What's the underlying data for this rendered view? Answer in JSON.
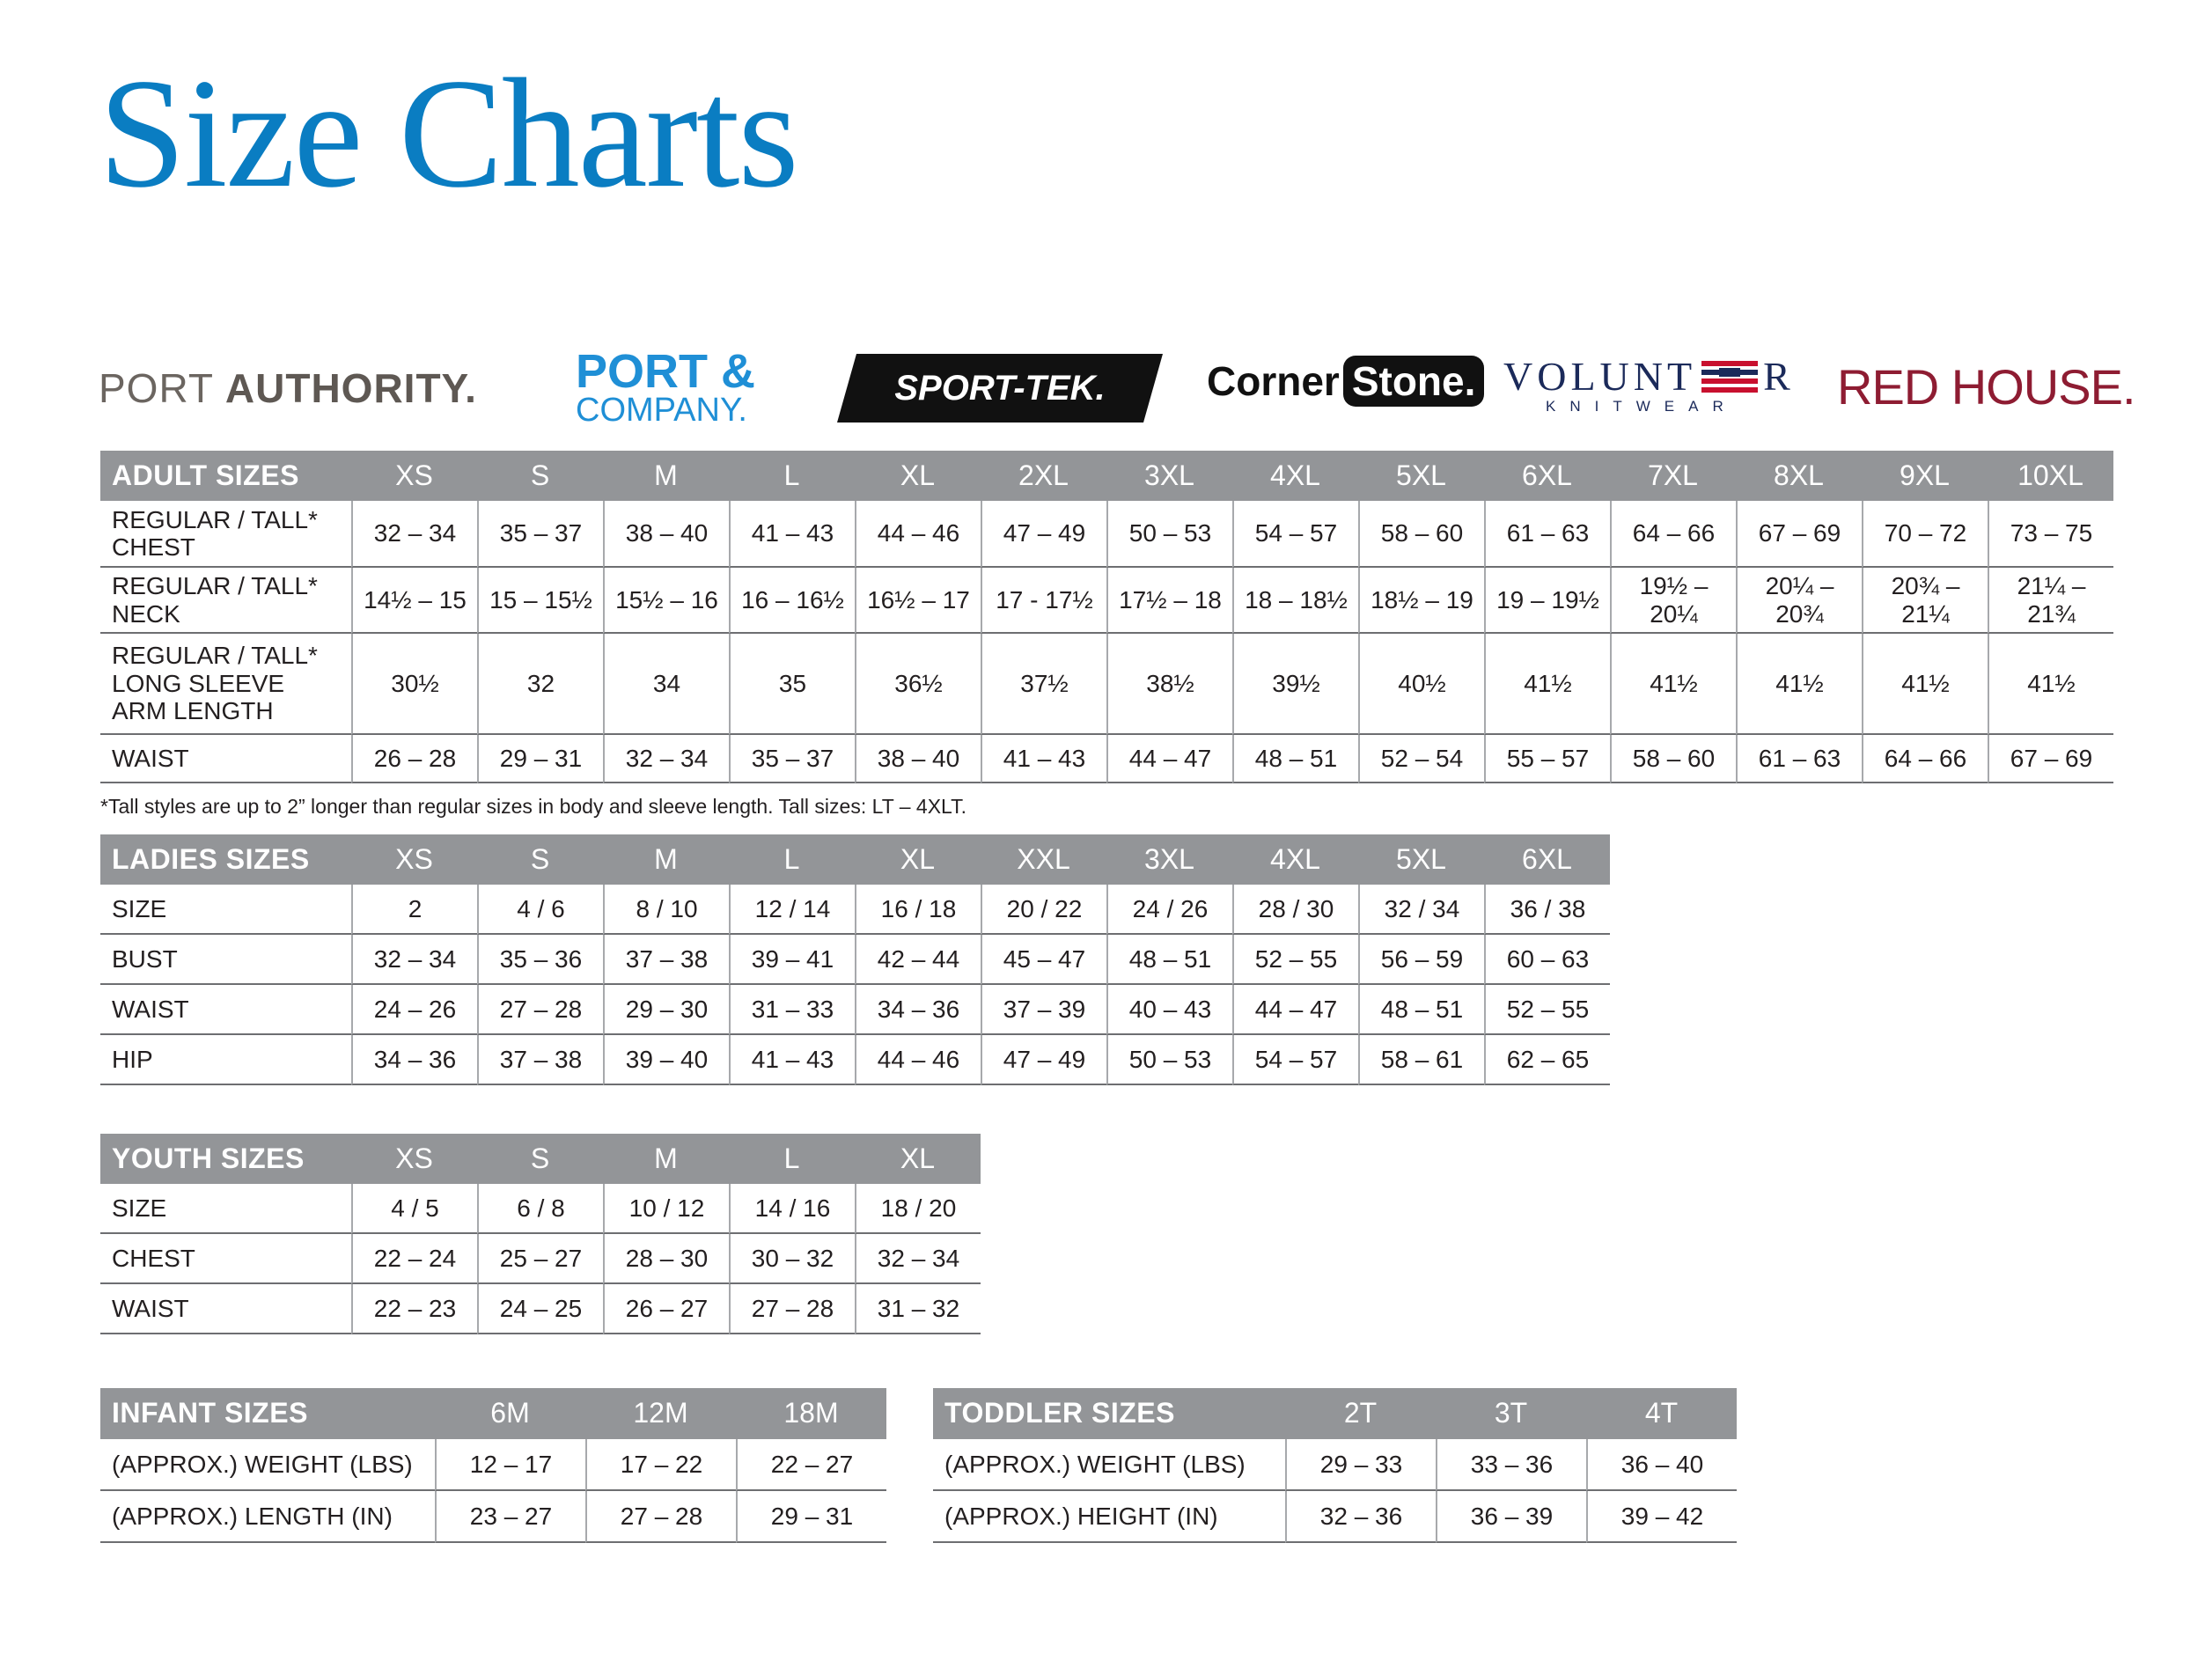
{
  "title": "Size Charts",
  "brands": [
    [
      "PORT",
      "AUTHORITY."
    ],
    [
      "PORT &",
      "COMPANY."
    ],
    [
      "SPORT-TEK."
    ],
    [
      "Corner",
      "Stone."
    ],
    [
      "VOLUNT",
      "R",
      "KNITWEAR"
    ],
    [
      "RED HOUSE."
    ]
  ],
  "footnote": "*Tall styles are up to 2” longer than regular sizes in body and sleeve length. Tall sizes: LT – 4XLT.",
  "tables": [
    {
      "title": "ADULT SIZES",
      "sizes": [
        "XS",
        "S",
        "M",
        "L",
        "XL",
        "2XL",
        "3XL",
        "4XL",
        "5XL",
        "6XL",
        "7XL",
        "8XL",
        "9XL",
        "10XL"
      ],
      "rows": [
        {
          "label": "REGULAR / TALL*\nCHEST",
          "cells": [
            "32 – 34",
            "35 – 37",
            "38 – 40",
            "41 – 43",
            "44 – 46",
            "47 – 49",
            "50 – 53",
            "54 – 57",
            "58 – 60",
            "61 – 63",
            "64 – 66",
            "67 – 69",
            "70 – 72",
            "73 – 75"
          ]
        },
        {
          "label": "REGULAR / TALL*\nNECK",
          "cells": [
            "14½ – 15",
            "15 – 15½",
            "15½ – 16",
            "16 – 16½",
            "16½ – 17",
            "17 - 17½",
            "17½ – 18",
            "18 – 18½",
            "18½ – 19",
            "19 – 19½",
            "19½ –\n20¼",
            "20¼ –\n20¾",
            "20¾ –\n21¼",
            "21¼ –\n21¾"
          ]
        },
        {
          "label": "REGULAR / TALL*\nLONG SLEEVE\nARM LENGTH",
          "cells": [
            "30½",
            "32",
            "34",
            "35",
            "36½",
            "37½",
            "38½",
            "39½",
            "40½",
            "41½",
            "41½",
            "41½",
            "41½",
            "41½"
          ]
        },
        {
          "label": "WAIST",
          "cells": [
            "26 – 28",
            "29 – 31",
            "32 – 34",
            "35 – 37",
            "38 – 40",
            "41 – 43",
            "44 – 47",
            "48 – 51",
            "52 – 54",
            "55 – 57",
            "58 – 60",
            "61 – 63",
            "64 – 66",
            "67 – 69"
          ]
        }
      ]
    },
    {
      "title": "LADIES SIZES",
      "sizes": [
        "XS",
        "S",
        "M",
        "L",
        "XL",
        "XXL",
        "3XL",
        "4XL",
        "5XL",
        "6XL"
      ],
      "rows": [
        {
          "label": "SIZE",
          "cells": [
            "2",
            "4 / 6",
            "8 / 10",
            "12 / 14",
            "16 / 18",
            "20 / 22",
            "24 / 26",
            "28 / 30",
            "32 / 34",
            "36 / 38"
          ]
        },
        {
          "label": "BUST",
          "cells": [
            "32 – 34",
            "35 – 36",
            "37 – 38",
            "39 – 41",
            "42 – 44",
            "45 – 47",
            "48 – 51",
            "52 – 55",
            "56 – 59",
            "60 – 63"
          ]
        },
        {
          "label": "WAIST",
          "cells": [
            "24 – 26",
            "27 – 28",
            "29 – 30",
            "31 – 33",
            "34 – 36",
            "37 – 39",
            "40 – 43",
            "44 – 47",
            "48 – 51",
            "52 – 55"
          ]
        },
        {
          "label": "HIP",
          "cells": [
            "34 – 36",
            "37 – 38",
            "39 – 40",
            "41 – 43",
            "44 – 46",
            "47 – 49",
            "50 – 53",
            "54 – 57",
            "58 – 61",
            "62 – 65"
          ]
        }
      ]
    },
    {
      "title": "YOUTH SIZES",
      "sizes": [
        "XS",
        "S",
        "M",
        "L",
        "XL"
      ],
      "rows": [
        {
          "label": "SIZE",
          "cells": [
            "4 / 5",
            "6 / 8",
            "10 / 12",
            "14 / 16",
            "18 / 20"
          ]
        },
        {
          "label": "CHEST",
          "cells": [
            "22 – 24",
            "25 – 27",
            "28 – 30",
            "30 – 32",
            "32 – 34"
          ]
        },
        {
          "label": "WAIST",
          "cells": [
            "22 – 23",
            "24 – 25",
            "26 – 27",
            "27 – 28",
            "31 – 32"
          ]
        }
      ]
    },
    {
      "title": "INFANT SIZES",
      "sizes": [
        "6M",
        "12M",
        "18M"
      ],
      "rows": [
        {
          "label": "(APPROX.) WEIGHT (LBS)",
          "cells": [
            "12 – 17",
            "17 – 22",
            "22 – 27"
          ]
        },
        {
          "label": "(APPROX.) LENGTH (IN)",
          "cells": [
            "23 – 27",
            "27 – 28",
            "29 – 31"
          ]
        }
      ]
    },
    {
      "title": "TODDLER SIZES",
      "sizes": [
        "2T",
        "3T",
        "4T"
      ],
      "rows": [
        {
          "label": "(APPROX.) WEIGHT (LBS)",
          "cells": [
            "29 – 33",
            "33 – 36",
            "36 – 40"
          ]
        },
        {
          "label": "(APPROX.) HEIGHT (IN)",
          "cells": [
            "32 – 36",
            "36 – 39",
            "39 – 42"
          ]
        }
      ]
    }
  ]
}
